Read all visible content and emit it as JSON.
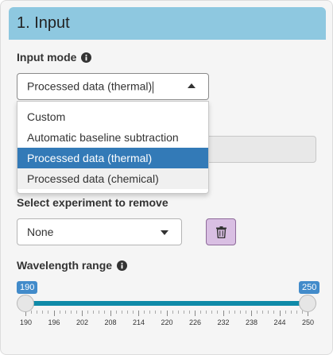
{
  "panel": {
    "title": "1. Input"
  },
  "input_mode": {
    "label": "Input mode",
    "info_icon": "info-circle-icon",
    "value": "Processed data (thermal)",
    "options": [
      "Custom",
      "Automatic baseline subtraction",
      "Processed data (thermal)",
      "Processed data (chemical)"
    ]
  },
  "remove_experiment": {
    "label": "Select experiment to remove",
    "value": "None",
    "button_icon": "trash-icon"
  },
  "wavelength": {
    "label": "Wavelength range",
    "info_icon": "info-circle-icon",
    "min": 190,
    "max": 250,
    "from": 190,
    "to": 250,
    "from_label": "190",
    "to_label": "250",
    "tick_labels": [
      "190",
      "196",
      "202",
      "208",
      "214",
      "220",
      "226",
      "232",
      "238",
      "244",
      "250"
    ]
  },
  "colors": {
    "header_bg": "#8ec8e0",
    "selected_option": "#337ab7",
    "slider_bar": "#0f8aa8",
    "badge": "#428bca",
    "trash_button": "#d9bfe3"
  }
}
